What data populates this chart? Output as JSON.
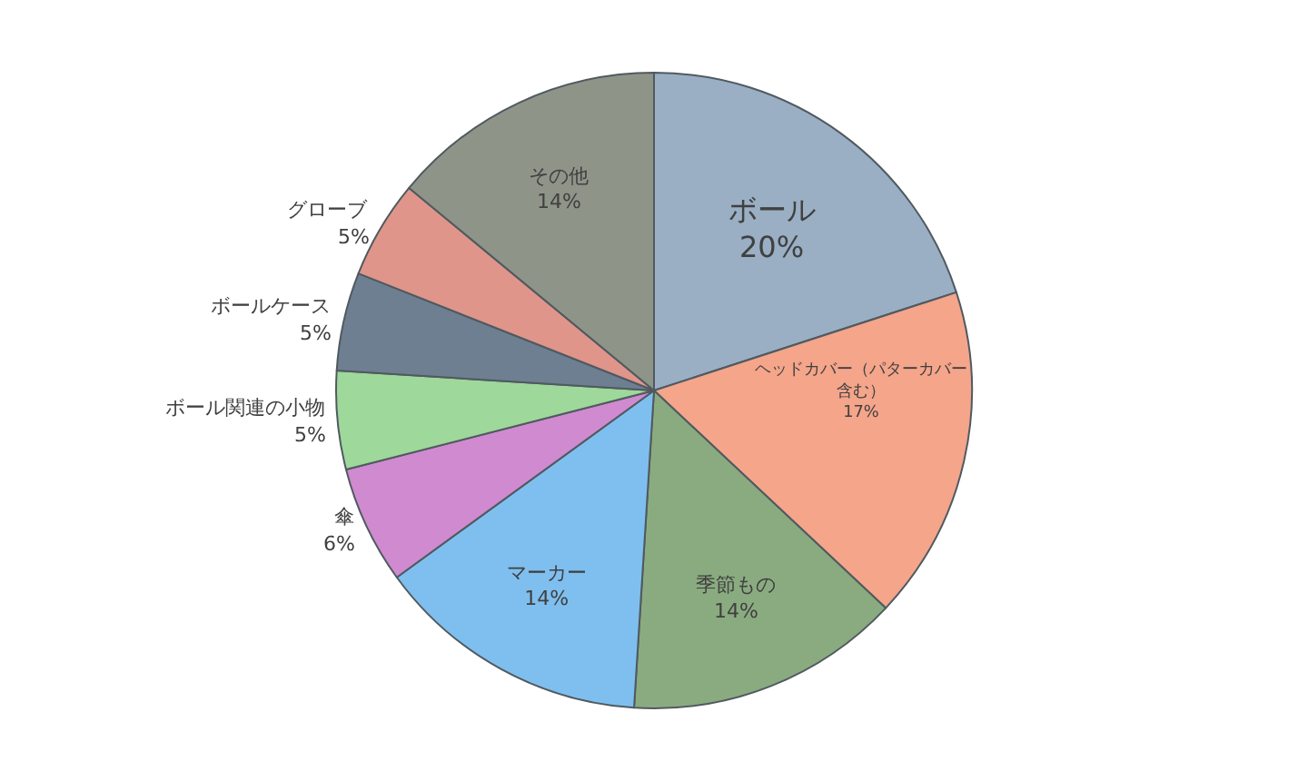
{
  "chart_data": {
    "type": "pie",
    "categories": [
      "ボール",
      "ヘッドカバー（パターカバー含む）",
      "季節もの",
      "マーカー",
      "傘",
      "ボール関連の小物",
      "ボールケース",
      "グローブ",
      "その他"
    ],
    "values": [
      20,
      17,
      14,
      14,
      6,
      5,
      5,
      5,
      14
    ],
    "colors": [
      "#9aafc4",
      "#f4a58a",
      "#8aab80",
      "#7fbfef",
      "#d08ad0",
      "#9ed89a",
      "#6e7f92",
      "#e0958a",
      "#8f9489"
    ],
    "data_labels": true,
    "value_labels": [
      "20%",
      "17%",
      "14%",
      "14%",
      "6%",
      "5%",
      "5%",
      "5%",
      "14%"
    ],
    "legend": false
  }
}
